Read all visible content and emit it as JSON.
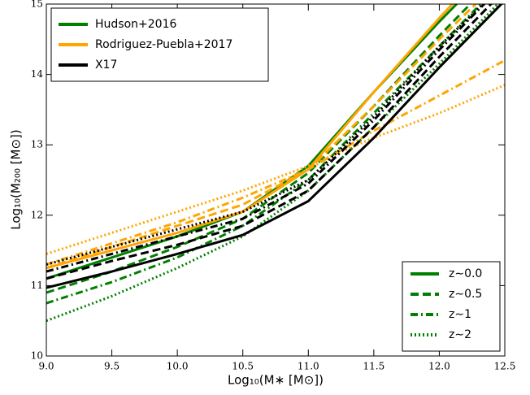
{
  "chart_data": {
    "type": "line",
    "x_label": "Log₁₀(M∗ [M⊙])",
    "y_label": "Log₁₀(M₂₀₀ [M⊙])",
    "xlim": [
      9.0,
      12.5
    ],
    "ylim": [
      10,
      15
    ],
    "xticks": [
      {
        "value": 9.0,
        "label": "9.0"
      },
      {
        "value": 9.5,
        "label": "9.5"
      },
      {
        "value": 10.0,
        "label": "10.0"
      },
      {
        "value": 10.5,
        "label": "10.5"
      },
      {
        "value": 11.0,
        "label": "11.0"
      },
      {
        "value": 11.5,
        "label": "11.5"
      },
      {
        "value": 12.0,
        "label": "12.0"
      },
      {
        "value": 12.5,
        "label": "12.5"
      }
    ],
    "yticks": [
      10,
      11,
      12,
      13,
      14,
      15
    ],
    "models": [
      {
        "name": "Hudson+2016",
        "color": "#008000"
      },
      {
        "name": "Rodriguez-Puebla+2017",
        "color": "#ffa500"
      },
      {
        "name": "X17",
        "color": "#000000"
      }
    ],
    "redshifts": [
      {
        "name": "z∼0.0",
        "style": "solid"
      },
      {
        "name": "z∼0.5",
        "style": "dashed"
      },
      {
        "name": "z∼1",
        "style": "dashdot"
      },
      {
        "name": "z∼2",
        "style": "dotted"
      }
    ],
    "model_legend_loc": "upper left",
    "redshift_legend_loc": "lower right",
    "x": [
      9.0,
      9.5,
      10.0,
      10.5,
      11.0,
      11.5,
      12.0,
      12.5
    ],
    "series": [
      {
        "model": 0,
        "redshift": 0,
        "values": [
          11.1,
          11.4,
          11.7,
          12.05,
          12.7,
          13.75,
          14.75,
          15.7
        ]
      },
      {
        "model": 0,
        "redshift": 1,
        "values": [
          10.9,
          11.2,
          11.55,
          11.95,
          12.6,
          13.55,
          14.55,
          15.5
        ]
      },
      {
        "model": 0,
        "redshift": 2,
        "values": [
          10.75,
          11.05,
          11.4,
          11.85,
          12.5,
          13.45,
          14.4,
          15.35
        ]
      },
      {
        "model": 0,
        "redshift": 3,
        "values": [
          10.5,
          10.85,
          11.25,
          11.7,
          12.35,
          13.25,
          14.15,
          15.1
        ]
      },
      {
        "model": 1,
        "redshift": 0,
        "values": [
          11.25,
          11.5,
          11.75,
          12.05,
          12.65,
          13.75,
          14.8,
          15.8
        ]
      },
      {
        "model": 1,
        "redshift": 1,
        "values": [
          11.25,
          11.55,
          11.85,
          12.15,
          12.65,
          13.55,
          14.5,
          15.4
        ]
      },
      {
        "model": 1,
        "redshift": 2,
        "values": [
          11.3,
          11.6,
          11.9,
          12.25,
          12.65,
          13.2,
          13.7,
          14.2
        ]
      },
      {
        "model": 1,
        "redshift": 3,
        "values": [
          11.45,
          11.75,
          12.05,
          12.35,
          12.7,
          13.1,
          13.45,
          13.85
        ]
      },
      {
        "model": 2,
        "redshift": 0,
        "values": [
          10.97,
          11.2,
          11.45,
          11.72,
          12.2,
          13.1,
          14.1,
          15.05
        ]
      },
      {
        "model": 2,
        "redshift": 1,
        "values": [
          11.1,
          11.35,
          11.58,
          11.85,
          12.35,
          13.25,
          14.25,
          15.2
        ]
      },
      {
        "model": 2,
        "redshift": 2,
        "values": [
          11.2,
          11.45,
          11.7,
          11.95,
          12.45,
          13.35,
          14.35,
          15.3
        ]
      },
      {
        "model": 2,
        "redshift": 3,
        "values": [
          11.3,
          11.55,
          11.8,
          12.05,
          12.5,
          13.4,
          14.4,
          15.3
        ]
      }
    ]
  }
}
